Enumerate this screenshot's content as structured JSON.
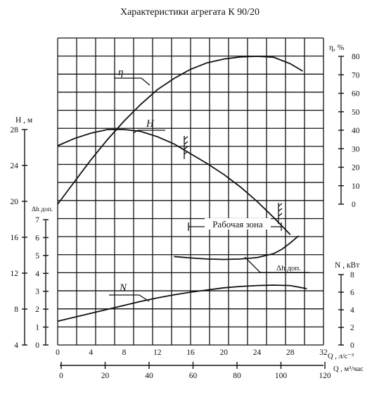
{
  "chart_data": {
    "type": "line",
    "title": "Характеристики агрегата К 90/20",
    "x": {
      "label": "Q , л/с⁻³",
      "range": [
        0,
        32
      ],
      "ticks": [
        0,
        4,
        8,
        12,
        16,
        20,
        24,
        28,
        32
      ],
      "tick_labels": [
        "0",
        "4",
        "8",
        "12",
        "16",
        "20",
        "24",
        "28",
        "32"
      ]
    },
    "x2": {
      "label": "Q , м³/час",
      "range": [
        0,
        120
      ],
      "ticks": [
        0,
        20,
        40,
        60,
        80,
        100,
        120
      ],
      "tick_labels": [
        "0",
        "20",
        "40",
        "60",
        "80",
        "100",
        "120"
      ]
    },
    "y_axes": {
      "H": {
        "label": "Н , м",
        "range": [
          4,
          28
        ],
        "ticks": [
          4,
          8,
          12,
          16,
          20,
          24,
          28
        ],
        "tick_labels": [
          "4",
          "8",
          "12",
          "16",
          "20",
          "24",
          "28"
        ]
      },
      "dh": {
        "label": "Δh доп.",
        "range": [
          0,
          7
        ],
        "ticks": [
          0,
          1,
          2,
          3,
          4,
          5,
          6,
          7
        ],
        "tick_labels": [
          "0",
          "1",
          "2",
          "3",
          "4",
          "5",
          "6",
          "7"
        ]
      },
      "eta": {
        "label": "η, %",
        "range": [
          0,
          80
        ],
        "ticks": [
          0,
          10,
          20,
          30,
          40,
          50,
          60,
          70,
          80
        ],
        "tick_labels": [
          "0",
          "10",
          "20",
          "30",
          "40",
          "50",
          "60",
          "70",
          "80"
        ]
      },
      "N": {
        "label": "N , кВт",
        "range": [
          0,
          8
        ],
        "ticks": [
          0,
          2,
          4,
          6,
          8
        ],
        "tick_labels": [
          "0",
          "2",
          "4",
          "6",
          "8"
        ]
      }
    },
    "series": [
      {
        "name": "η",
        "axis": "eta",
        "x": [
          0,
          2,
          4,
          6,
          8,
          10,
          12,
          14,
          16,
          18,
          20,
          22,
          24,
          26,
          28,
          29.5
        ],
        "y": [
          0,
          12,
          24,
          35,
          45,
          54,
          62,
          68,
          73,
          76.5,
          78.5,
          79.7,
          80,
          79.5,
          76,
          72
        ]
      },
      {
        "name": "H",
        "axis": "H",
        "x": [
          0,
          2,
          4,
          6,
          8,
          10,
          12,
          14,
          16,
          18,
          20,
          22,
          24,
          26,
          28
        ],
        "y": [
          26.2,
          27,
          27.6,
          28,
          28,
          27.8,
          27.2,
          26.4,
          25.3,
          24.2,
          23,
          21.6,
          20,
          18.2,
          16.3
        ]
      },
      {
        "name": "Δh доп.",
        "axis": "dh",
        "x": [
          14,
          16,
          18,
          20,
          22,
          24,
          26,
          27,
          28,
          29
        ],
        "y": [
          4.94,
          4.86,
          4.8,
          4.78,
          4.8,
          4.88,
          5.1,
          5.35,
          5.7,
          6.1
        ]
      },
      {
        "name": "N",
        "axis": "N",
        "x": [
          0,
          2,
          4,
          6,
          8,
          10,
          12,
          14,
          16,
          18,
          20,
          22,
          24,
          26,
          28,
          30
        ],
        "y": [
          2.7,
          3.15,
          3.6,
          4.05,
          4.5,
          4.95,
          5.35,
          5.7,
          6.0,
          6.25,
          6.5,
          6.65,
          6.75,
          6.8,
          6.75,
          6.4
        ]
      }
    ],
    "annotations": [
      {
        "text": "Рабочая зона",
        "x_range": [
          16,
          28
        ]
      }
    ],
    "grid": true,
    "legend": "none"
  }
}
